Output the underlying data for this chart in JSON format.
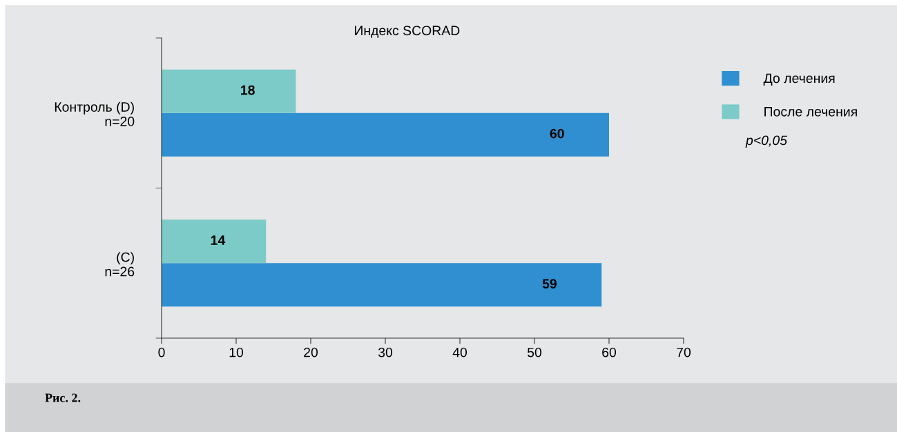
{
  "chart_data": {
    "type": "bar",
    "orientation": "horizontal",
    "title": "Индекс SCORAD",
    "categories": [
      "Контроль (D)\nn=20",
      "(C)\nn=26"
    ],
    "series": [
      {
        "name": "До лечения",
        "color": "#2f8fd0",
        "values": [
          60,
          59
        ]
      },
      {
        "name": "После лечения",
        "color": "#7ccbc8",
        "values": [
          18,
          14
        ]
      }
    ],
    "xlim": [
      0,
      70
    ],
    "xticks": [
      0,
      10,
      20,
      30,
      40,
      50,
      60,
      70
    ],
    "data_labels": true,
    "grid": false,
    "legend": "right",
    "annotations": [
      "p<0,05",
      "Рис. 2."
    ]
  }
}
